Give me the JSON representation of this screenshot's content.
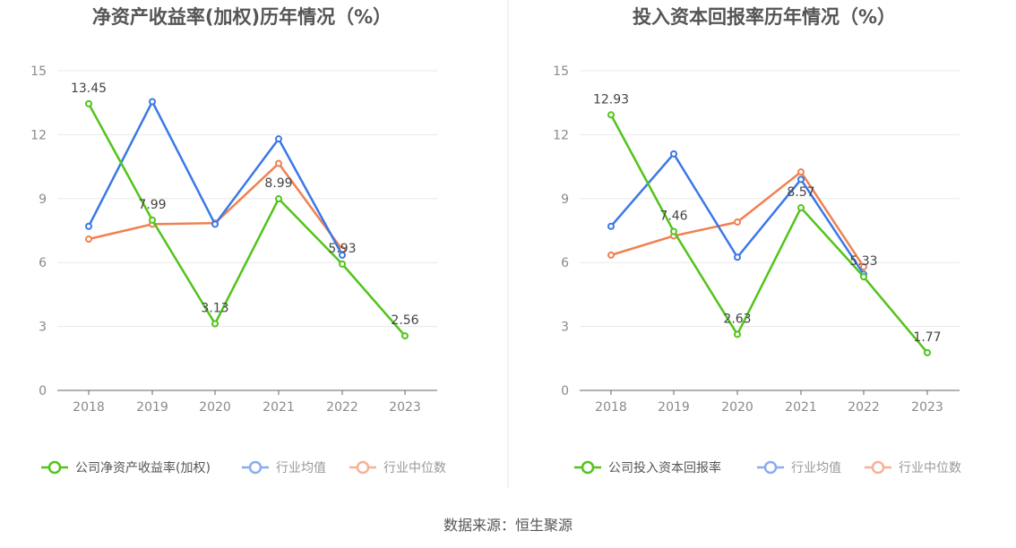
{
  "source_note": "数据来源：恒生聚源",
  "chart_data": [
    {
      "type": "line",
      "title": "净资产收益率(加权)历年情况（%）",
      "categories": [
        "2018",
        "2019",
        "2020",
        "2021",
        "2022",
        "2023"
      ],
      "yticks": [
        "0",
        "3",
        "6",
        "9",
        "12",
        "15"
      ],
      "ylim": [
        0,
        15
      ],
      "grid": true,
      "legend_position": "bottom",
      "series": [
        {
          "name": "公司净资产收益率(加权)",
          "color": "#52c41a",
          "values": [
            13.45,
            7.99,
            3.13,
            8.99,
            5.93,
            2.56
          ],
          "labels": [
            "13.45",
            "7.99",
            "3.13",
            "8.99",
            "5.93",
            "2.56"
          ]
        },
        {
          "name": "行业均值",
          "color": "#3b78e7",
          "values": [
            7.7,
            13.55,
            7.8,
            11.8,
            6.35,
            null
          ]
        },
        {
          "name": "行业中位数",
          "color": "#f08050",
          "values": [
            7.1,
            7.8,
            7.85,
            10.65,
            6.6,
            null
          ]
        }
      ]
    },
    {
      "type": "line",
      "title": "投入资本回报率历年情况（%）",
      "categories": [
        "2018",
        "2019",
        "2020",
        "2021",
        "2022",
        "2023"
      ],
      "yticks": [
        "0",
        "3",
        "6",
        "9",
        "12",
        "15"
      ],
      "ylim": [
        0,
        15
      ],
      "grid": true,
      "legend_position": "bottom",
      "series": [
        {
          "name": "公司投入资本回报率",
          "color": "#52c41a",
          "values": [
            12.93,
            7.46,
            2.63,
            8.57,
            5.33,
            1.77
          ],
          "labels": [
            "12.93",
            "7.46",
            "2.63",
            "8.57",
            "5.33",
            "1.77"
          ]
        },
        {
          "name": "行业均值",
          "color": "#3b78e7",
          "values": [
            7.7,
            11.1,
            6.25,
            9.9,
            5.45,
            null
          ]
        },
        {
          "name": "行业中位数",
          "color": "#f08050",
          "values": [
            6.35,
            7.25,
            7.9,
            10.25,
            5.8,
            null
          ]
        }
      ]
    }
  ]
}
